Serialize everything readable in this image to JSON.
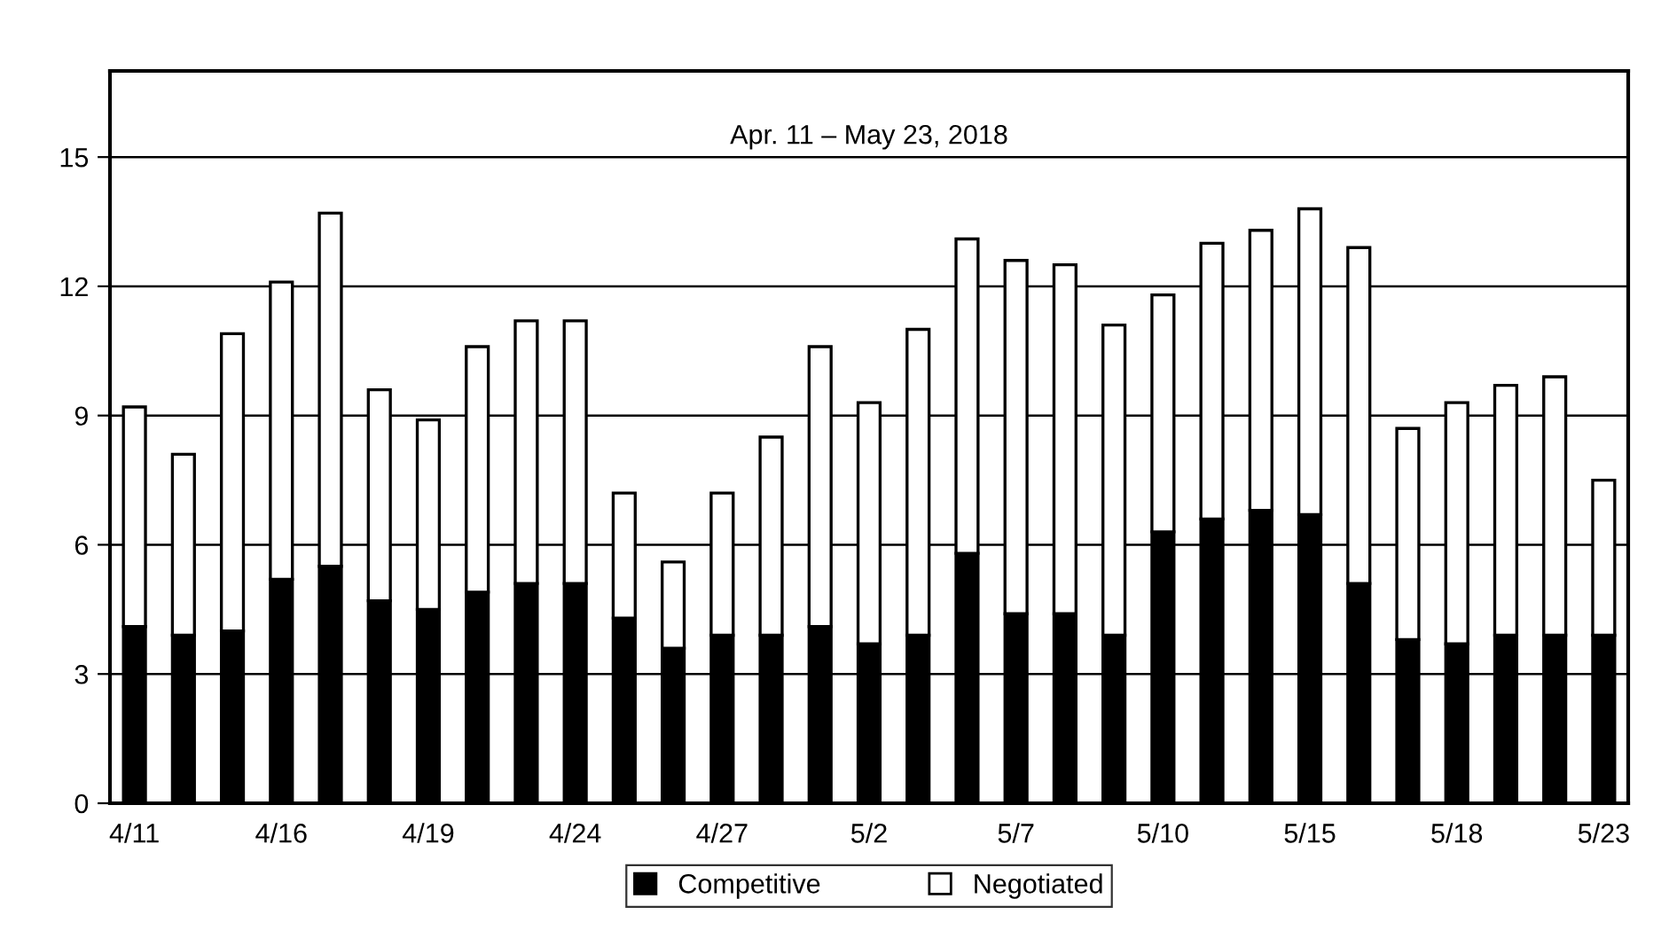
{
  "chart_data": {
    "type": "bar",
    "stacked": true,
    "title": "Apr. 11 – May 23, 2018",
    "categories": [
      "4/11",
      null,
      null,
      "4/16",
      null,
      null,
      "4/19",
      null,
      null,
      "4/24",
      null,
      null,
      "4/27",
      null,
      null,
      "5/2",
      null,
      null,
      "5/7",
      null,
      null,
      "5/10",
      null,
      null,
      "5/15",
      null,
      null,
      "5/18",
      null,
      null,
      "5/23"
    ],
    "series": [
      {
        "name": "Competitive",
        "color": "#000000",
        "values": [
          4.1,
          3.9,
          4.0,
          5.2,
          5.5,
          4.7,
          4.5,
          4.9,
          5.1,
          5.1,
          4.3,
          3.6,
          3.9,
          3.9,
          4.1,
          3.7,
          3.9,
          5.8,
          4.4,
          4.4,
          3.9,
          6.3,
          6.6,
          6.8,
          6.7,
          5.1,
          3.8,
          3.7,
          3.9,
          3.9,
          3.9
        ]
      },
      {
        "name": "Negotiated",
        "color": "#ffffff",
        "values": [
          5.1,
          4.2,
          6.9,
          6.9,
          8.2,
          4.9,
          4.4,
          5.7,
          6.1,
          6.1,
          2.9,
          2.0,
          3.3,
          4.6,
          6.5,
          5.6,
          7.1,
          7.3,
          8.2,
          8.1,
          7.2,
          5.5,
          6.4,
          6.5,
          7.1,
          7.8,
          4.9,
          5.6,
          5.8,
          6.0,
          3.6
        ]
      }
    ],
    "ylim": [
      0,
      17
    ],
    "yticks": [
      0,
      3,
      6,
      9,
      12,
      15
    ],
    "grid": "y",
    "legend": "bottom"
  }
}
